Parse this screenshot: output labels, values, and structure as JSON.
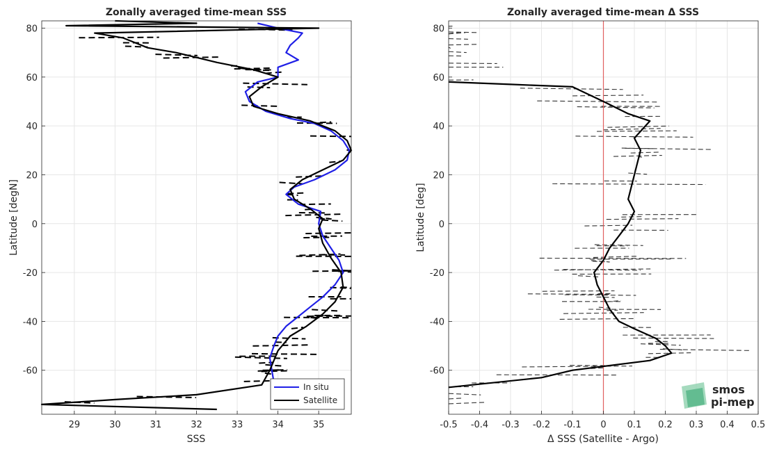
{
  "colors": {
    "insitu": "#1f1fe6",
    "satellite": "#000000",
    "zero_line": "#e06060",
    "grid": "#e6e6e6",
    "logo": "#5cb88c"
  },
  "logo": {
    "line1": "smos",
    "line2": "pi-mep"
  },
  "chart_data": [
    {
      "type": "line",
      "title": "Zonally averaged time-mean SSS",
      "xlabel": "SSS",
      "ylabel": "Latitude [degN]",
      "xlim": [
        28.2,
        35.8
      ],
      "ylim": [
        -78,
        83
      ],
      "xticks": [
        29,
        30,
        31,
        32,
        33,
        34,
        35
      ],
      "xtick_labels": [
        "29",
        "30",
        "31",
        "32",
        "33",
        "34",
        "35"
      ],
      "yticks": [
        80,
        60,
        40,
        20,
        0,
        -20,
        -40,
        -60
      ],
      "ytick_labels": [
        "80",
        "60",
        "40",
        "20",
        "0",
        "-20",
        "-40",
        "-60"
      ],
      "grid": true,
      "legend_position": "bottom-right",
      "series": [
        {
          "name": "In situ",
          "color": "#1f1fe6",
          "style": "solid",
          "x": [
            34.2,
            34.0,
            33.9,
            33.85,
            33.8,
            33.9,
            34.0,
            34.2,
            34.5,
            34.8,
            35.1,
            35.4,
            35.6,
            35.5,
            35.3,
            35.1,
            35.0,
            35.05,
            34.5,
            34.2,
            34.4,
            34.9,
            35.4,
            35.7,
            35.75,
            35.6,
            35.3,
            34.9,
            34.3,
            33.7,
            33.3,
            33.2,
            33.5,
            34.0,
            34.0,
            34.5,
            34.2,
            34.3,
            34.5,
            34.6,
            34.0,
            33.5
          ],
          "y": [
            -76,
            -70,
            -65,
            -60,
            -55,
            -50,
            -46,
            -42,
            -38,
            -34,
            -30,
            -25,
            -20,
            -15,
            -10,
            -5,
            0,
            5,
            8,
            12,
            15,
            18,
            22,
            26,
            30,
            34,
            38,
            41,
            43,
            46,
            50,
            54,
            58,
            60,
            64,
            67,
            70,
            73,
            76,
            78,
            80,
            82
          ]
        },
        {
          "name": "Satellite",
          "color": "#000000",
          "style": "solid",
          "x": [
            32.5,
            28.2,
            30.0,
            32.0,
            33.6,
            33.8,
            34.0,
            34.3,
            34.7,
            35.1,
            35.4,
            35.6,
            35.55,
            35.3,
            35.1,
            35.0,
            35.1,
            34.8,
            34.4,
            34.3,
            34.6,
            35.1,
            35.6,
            35.8,
            35.7,
            35.4,
            34.8,
            34.0,
            33.4,
            33.3,
            33.6,
            34.0,
            33.4,
            32.5,
            32.0,
            31.5,
            30.8,
            30.5,
            30.2,
            29.5,
            35.0,
            28.8,
            32.0,
            30.0
          ],
          "y": [
            -76,
            -74,
            -72,
            -70,
            -66,
            -60,
            -52,
            -46,
            -42,
            -37,
            -32,
            -26,
            -20,
            -14,
            -8,
            -2,
            2,
            6,
            10,
            14,
            18,
            22,
            26,
            30,
            34,
            38,
            42,
            45,
            48,
            52,
            56,
            60,
            63,
            66,
            68,
            70,
            72,
            74,
            76,
            78,
            80,
            81,
            82,
            83
          ]
        }
      ]
    },
    {
      "type": "line",
      "title": "Zonally averaged time-mean Δ SSS",
      "xlabel": "Δ SSS (Satellite - Argo)",
      "ylabel": "Latitude [deg]",
      "xlim": [
        -0.5,
        0.5
      ],
      "ylim": [
        -78,
        83
      ],
      "xticks": [
        -0.5,
        -0.4,
        -0.3,
        -0.2,
        -0.1,
        0,
        0.1,
        0.2,
        0.3,
        0.4,
        0.5
      ],
      "xtick_labels": [
        "-0.5",
        "-0.4",
        "-0.3",
        "-0.2",
        "-0.1",
        "0",
        "0.1",
        "0.2",
        "0.3",
        "0.4",
        "0.5"
      ],
      "yticks": [
        80,
        60,
        40,
        20,
        0,
        -20,
        -40,
        -60
      ],
      "ytick_labels": [
        "80",
        "60",
        "40",
        "20",
        "0",
        "-20",
        "-40",
        "-60"
      ],
      "grid": true,
      "series": [
        {
          "color": "#000000",
          "style": "solid",
          "x": [
            -0.5,
            -0.2,
            -0.1,
            0.15,
            0.22,
            0.2,
            0.17,
            0.1,
            0.05,
            0.02,
            0.0,
            -0.02,
            -0.03,
            0.0,
            0.02,
            0.05,
            0.08,
            0.1,
            0.08,
            0.1,
            0.12,
            0.1,
            0.15,
            0.08,
            0.0,
            -0.05,
            -0.1,
            -0.3,
            -0.5
          ],
          "y": [
            -67,
            -63,
            -60,
            -56,
            -53,
            -50,
            -47,
            -43,
            -40,
            -35,
            -30,
            -25,
            -20,
            -15,
            -10,
            -5,
            0,
            5,
            10,
            20,
            30,
            35,
            42,
            45,
            50,
            53,
            56,
            57,
            58
          ]
        }
      ]
    }
  ]
}
